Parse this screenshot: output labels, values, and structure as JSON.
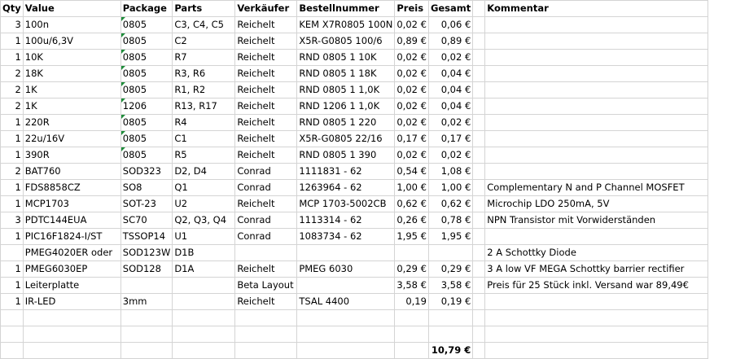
{
  "headers": {
    "qty": "Qty",
    "value": "Value",
    "package": "Package",
    "parts": "Parts",
    "vendor": "Verkäufer",
    "order": "Bestellnummer",
    "price": "Preis",
    "total": "Gesamt",
    "comment": "Kommentar"
  },
  "rows": [
    {
      "qty": "3",
      "value": "100n",
      "package": "0805",
      "parts": "C3, C4, C5",
      "vendor": "Reichelt",
      "order": "KEM X7R0805 100N",
      "price": "0,02 €",
      "total": "0,06 €",
      "comment": ""
    },
    {
      "qty": "1",
      "value": "100u/6,3V",
      "package": "0805",
      "parts": "C2",
      "vendor": "Reichelt",
      "order": "X5R-G0805 100/6",
      "price": "0,89 €",
      "total": "0,89 €",
      "comment": ""
    },
    {
      "qty": "1",
      "value": "10K",
      "package": "0805",
      "parts": "R7",
      "vendor": "Reichelt",
      "order": "RND 0805 1 10K",
      "price": "0,02 €",
      "total": "0,02 €",
      "comment": ""
    },
    {
      "qty": "2",
      "value": "18K",
      "package": "0805",
      "parts": "R3, R6",
      "vendor": "Reichelt",
      "order": "RND 0805 1 18K",
      "price": "0,02 €",
      "total": "0,04 €",
      "comment": ""
    },
    {
      "qty": "2",
      "value": "1K",
      "package": "0805",
      "parts": "R1, R2",
      "vendor": "Reichelt",
      "order": "RND 0805 1 1,0K",
      "price": "0,02 €",
      "total": "0,04 €",
      "comment": ""
    },
    {
      "qty": "2",
      "value": "1K",
      "package": "1206",
      "parts": "R13, R17",
      "vendor": "Reichelt",
      "order": "RND 1206 1 1,0K",
      "price": "0,02 €",
      "total": "0,04 €",
      "comment": ""
    },
    {
      "qty": "1",
      "value": "220R",
      "package": "0805",
      "parts": "R4",
      "vendor": "Reichelt",
      "order": "RND 0805 1 220",
      "price": "0,02 €",
      "total": "0,02 €",
      "comment": ""
    },
    {
      "qty": "1",
      "value": "22u/16V",
      "package": "0805",
      "parts": "C1",
      "vendor": "Reichelt",
      "order": "X5R-G0805 22/16",
      "price": "0,17 €",
      "total": "0,17 €",
      "comment": ""
    },
    {
      "qty": "1",
      "value": "390R",
      "package": "0805",
      "parts": "R5",
      "vendor": "Reichelt",
      "order": "RND 0805 1 390",
      "price": "0,02 €",
      "total": "0,02 €",
      "comment": ""
    },
    {
      "qty": "2",
      "value": "BAT760",
      "package": "SOD323",
      "parts": "D2, D4",
      "vendor": "Conrad",
      "order": "1111831 - 62",
      "price": "0,54 €",
      "total": "1,08 €",
      "comment": ""
    },
    {
      "qty": "1",
      "value": "FDS8858CZ",
      "package": "SO8",
      "parts": "Q1",
      "vendor": "Conrad",
      "order": "1263964 - 62",
      "price": "1,00 €",
      "total": "1,00 €",
      "comment": "Complementary  N and P Channel MOSFET"
    },
    {
      "qty": "1",
      "value": "MCP1703",
      "package": "SOT-23",
      "parts": "U2",
      "vendor": "Reichelt",
      "order": "MCP 1703-5002CB",
      "price": "0,62 €",
      "total": "0,62 €",
      "comment": "Microchip LDO 250mA, 5V"
    },
    {
      "qty": "3",
      "value": "PDTC144EUA",
      "package": "SC70",
      "parts": "Q2, Q3, Q4",
      "vendor": "Conrad",
      "order": "1113314 - 62",
      "price": "0,26 €",
      "total": "0,78 €",
      "comment": "NPN Transistor mit Vorwiderständen"
    },
    {
      "qty": "1",
      "value": "PIC16F1824-I/ST",
      "package": "TSSOP14",
      "parts": "U1",
      "vendor": "Conrad",
      "order": "1083734 - 62",
      "price": "1,95 €",
      "total": "1,95 €",
      "comment": ""
    },
    {
      "qty": "",
      "value": "PMEG4020ER oder",
      "package": "SOD123W",
      "parts": "D1B",
      "vendor": "",
      "order": "",
      "price": "",
      "total": "",
      "comment": "2 A Schottky Diode"
    },
    {
      "qty": "1",
      "value": "PMEG6030EP",
      "package": "SOD128",
      "parts": "D1A",
      "vendor": "Reichelt",
      "order": "PMEG 6030",
      "price": "0,29 €",
      "total": "0,29 €",
      "comment": "3 A low VF MEGA Schottky barrier rectifier"
    },
    {
      "qty": "1",
      "value": "Leiterplatte",
      "package": "",
      "parts": "",
      "vendor": "Beta Layout",
      "order": "",
      "price": "3,58 €",
      "total": "3,58 €",
      "comment": "Preis für 25 Stück inkl. Versand war 89,49€"
    },
    {
      "qty": "1",
      "value": "IR-LED",
      "package": "3mm",
      "parts": "",
      "vendor": "Reichelt",
      "order": "TSAL 4400",
      "price": "0,19",
      "total": "0,19 €",
      "comment": ""
    },
    {
      "qty": "",
      "value": "",
      "package": "",
      "parts": "",
      "vendor": "",
      "order": "",
      "price": "",
      "total": "",
      "comment": ""
    },
    {
      "qty": "",
      "value": "",
      "package": "",
      "parts": "",
      "vendor": "",
      "order": "",
      "price": "",
      "total": "",
      "comment": ""
    }
  ],
  "grand_total": "10,79 €",
  "styles": {
    "gridline_color": "#d4d4d4",
    "comment_indicator_color": "#1e8c3a"
  },
  "package_text_markers": [
    0,
    1,
    2,
    3,
    4,
    5,
    6,
    7,
    8
  ]
}
